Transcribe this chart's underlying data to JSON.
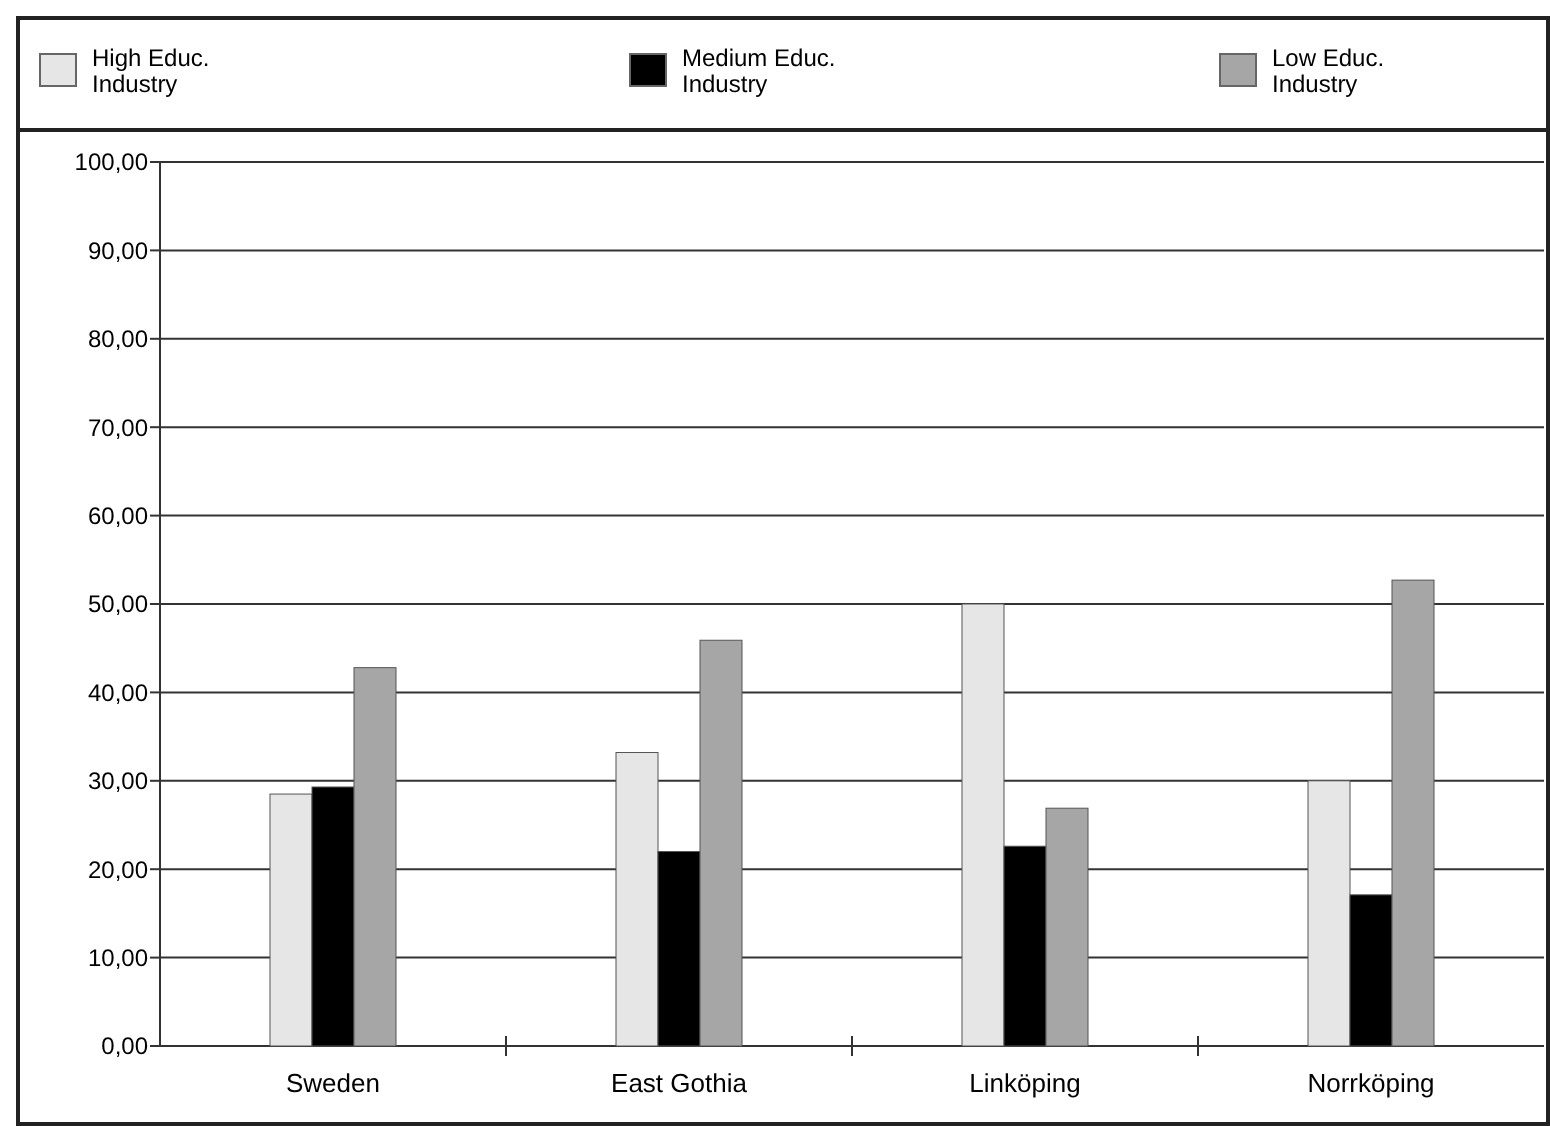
{
  "chart_data": {
    "type": "bar",
    "categories": [
      "Sweden",
      "East Gothia",
      "Linköping",
      "Norrköping"
    ],
    "series": [
      {
        "name": "High Educ.\nIndustry",
        "color": "#e6e6e6",
        "values": [
          28.5,
          33.2,
          50,
          30
        ]
      },
      {
        "name": "Medium Educ.\nIndustry",
        "color": "#000000",
        "values": [
          29.3,
          22,
          22.6,
          17.1
        ]
      },
      {
        "name": "Low Educ.\nIndustry",
        "color": "#a6a6a6",
        "values": [
          42.8,
          45.9,
          26.9,
          52.7
        ]
      }
    ],
    "ylim": [
      0,
      100
    ],
    "yticks": [
      {
        "value": 0,
        "label": "0,00"
      },
      {
        "value": 10,
        "label": "10,00"
      },
      {
        "value": 20,
        "label": "20,00"
      },
      {
        "value": 30,
        "label": "30,00"
      },
      {
        "value": 40,
        "label": "40,00"
      },
      {
        "value": 50,
        "label": "50,00"
      },
      {
        "value": 60,
        "label": "60,00"
      },
      {
        "value": 70,
        "label": "70,00"
      },
      {
        "value": 80,
        "label": "80,00"
      },
      {
        "value": 90,
        "label": "90,00"
      },
      {
        "value": 100,
        "label": "100,00"
      }
    ],
    "grid": "y",
    "legend": "top"
  }
}
